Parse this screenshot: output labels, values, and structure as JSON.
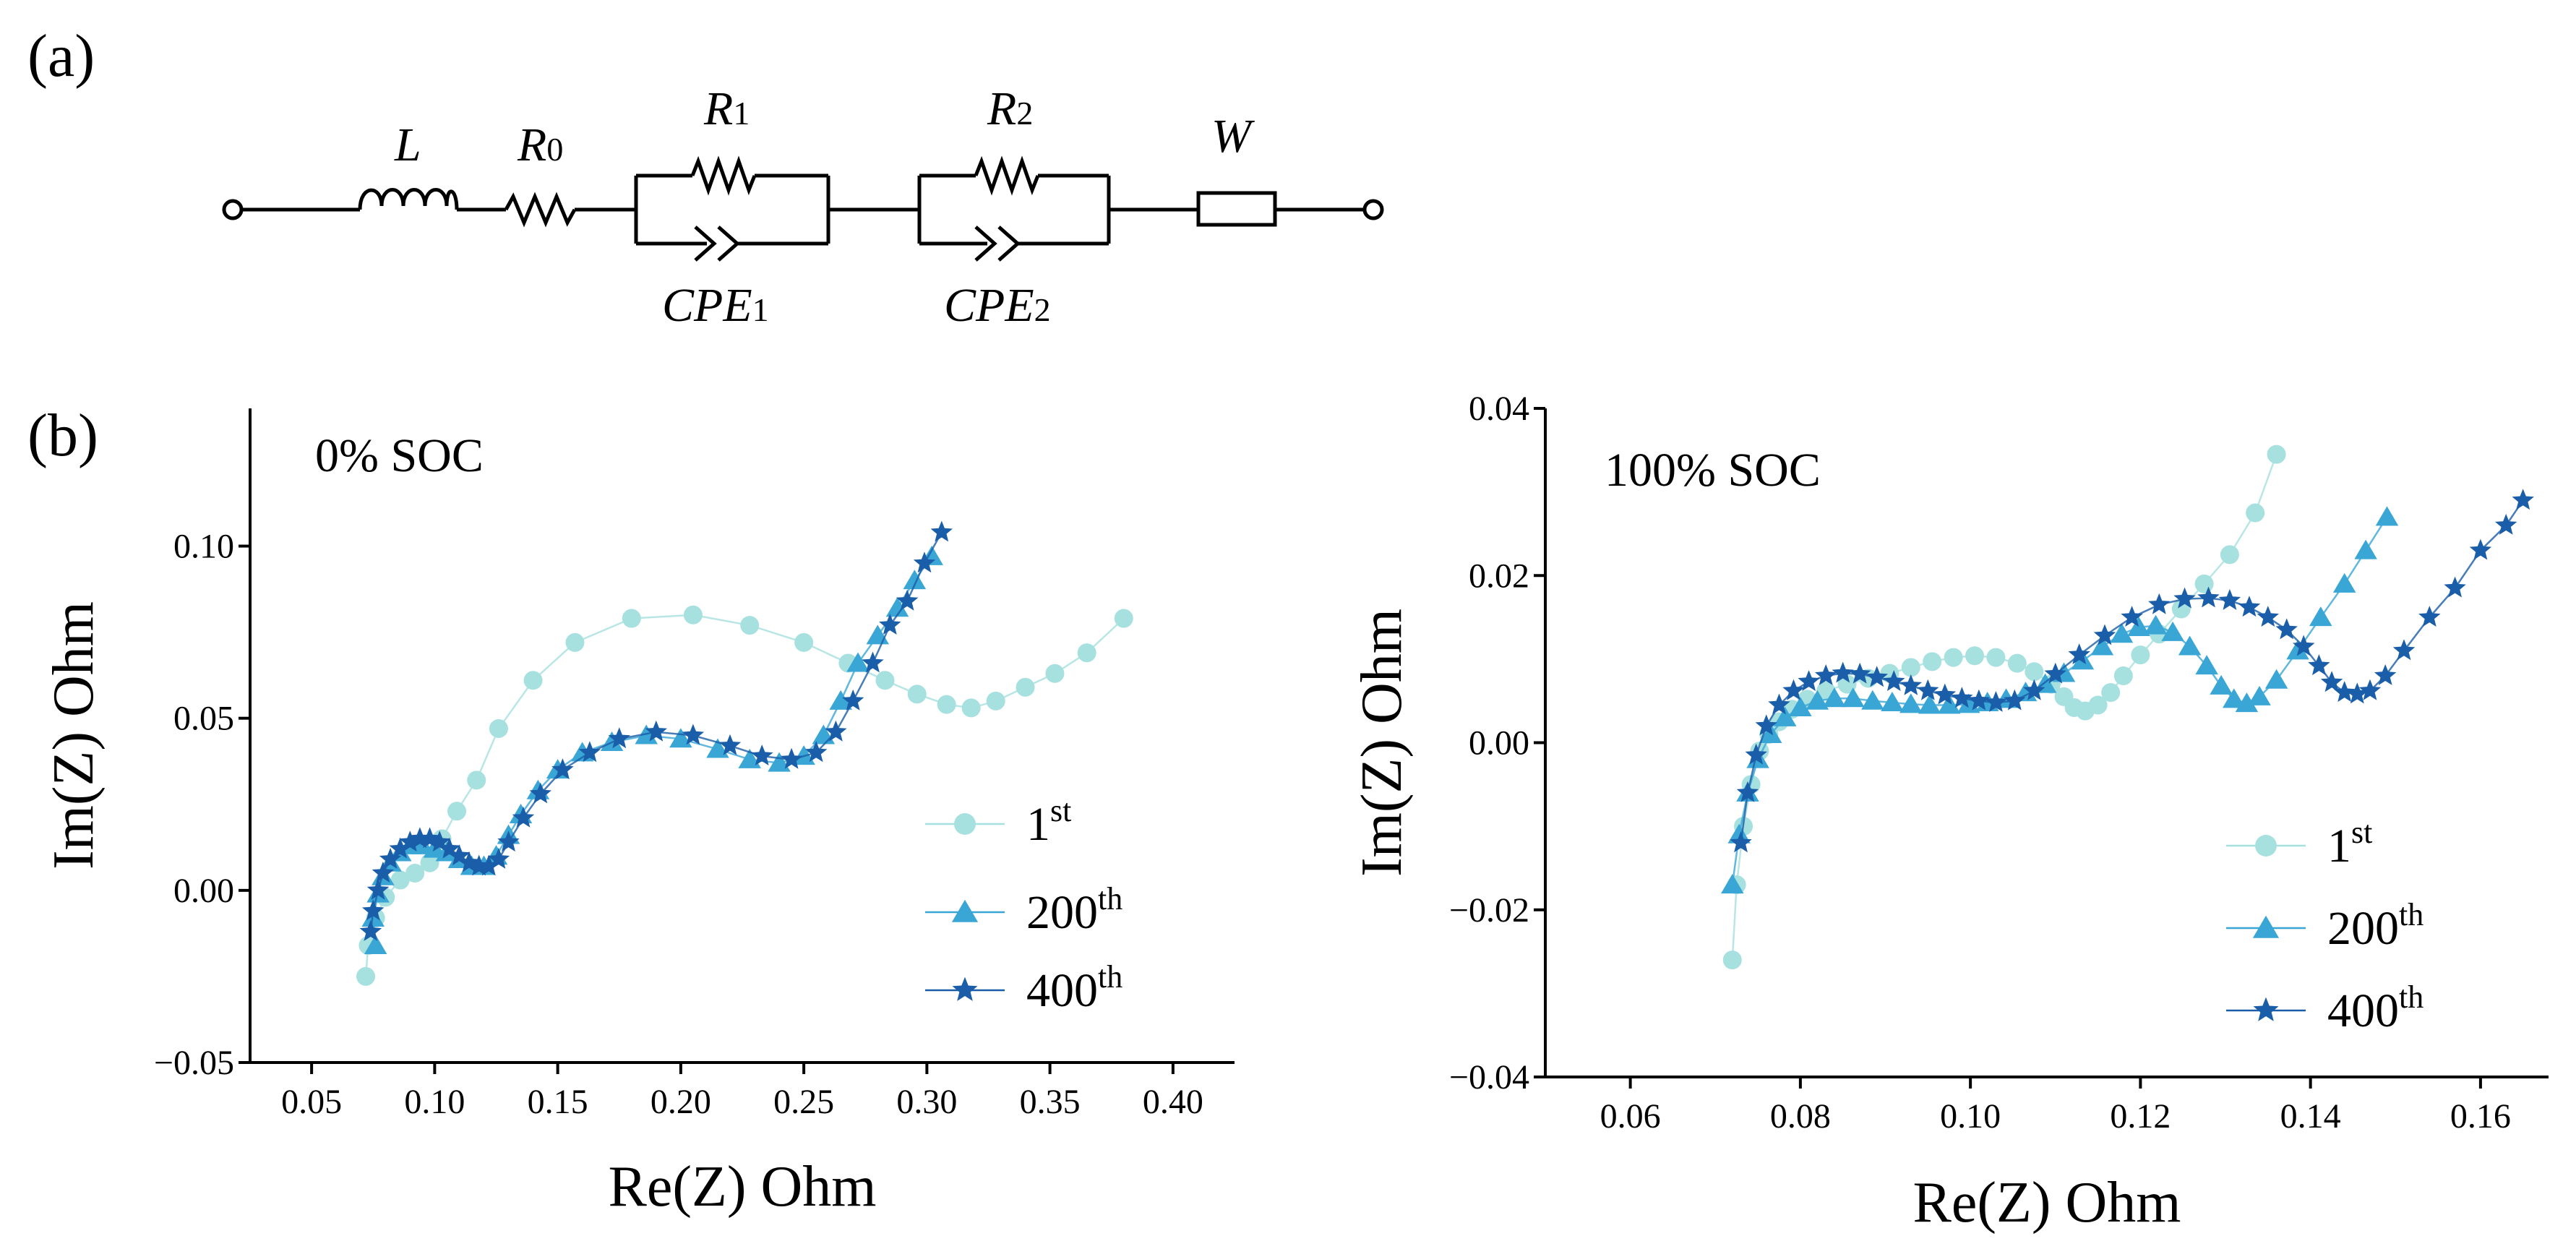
{
  "panel_labels": {
    "a": "(a)",
    "b": "(b)"
  },
  "circuit": {
    "labels": {
      "L": "L",
      "R0_main": "R",
      "R0_sub": "0",
      "R1_main": "R",
      "R1_sub": "1",
      "R2_main": "R",
      "R2_sub": "2",
      "W": "W",
      "CPE1_main": "CPE",
      "CPE1_sub": "1",
      "CPE2_main": "CPE",
      "CPE2_sub": "2"
    }
  },
  "colors": {
    "s1": "#a6e0df",
    "s200": "#3aa6d6",
    "s400": "#1a5da8"
  },
  "chart_data": [
    {
      "type": "scatter",
      "annotation": "0% SOC",
      "xlabel": "Re(Z) Ohm",
      "ylabel": "Im(Z) Ohm",
      "xlim": [
        0.025,
        0.425
      ],
      "ylim": [
        -0.05,
        0.14
      ],
      "xticks": [
        0.05,
        0.1,
        0.15,
        0.2,
        0.25,
        0.3,
        0.35,
        0.4
      ],
      "xtick_labels": [
        "0.05",
        "0.10",
        "0.15",
        "0.20",
        "0.25",
        "0.30",
        "0.35",
        "0.40"
      ],
      "yticks": [
        -0.05,
        0.0,
        0.05,
        0.1
      ],
      "ytick_labels": [
        "−0.05",
        "0.00",
        "0.05",
        "0.10"
      ],
      "legend_position": "right",
      "series": [
        {
          "name": "1",
          "sup": "st",
          "marker": "circle",
          "color_key": "s1",
          "x": [
            0.072,
            0.073,
            0.076,
            0.08,
            0.086,
            0.092,
            0.098,
            0.103,
            0.109,
            0.117,
            0.126,
            0.14,
            0.157,
            0.18,
            0.205,
            0.228,
            0.25,
            0.268,
            0.283,
            0.296,
            0.308,
            0.318,
            0.328,
            0.34,
            0.352,
            0.365,
            0.38
          ],
          "y": [
            -0.025,
            -0.016,
            -0.008,
            -0.002,
            0.003,
            0.005,
            0.008,
            0.015,
            0.023,
            0.032,
            0.047,
            0.061,
            0.072,
            0.079,
            0.08,
            0.077,
            0.072,
            0.066,
            0.061,
            0.057,
            0.054,
            0.053,
            0.055,
            0.059,
            0.063,
            0.069,
            0.079
          ]
        },
        {
          "name": "200",
          "sup": "th",
          "marker": "triangle",
          "color_key": "s200",
          "x": [
            0.076,
            0.075,
            0.077,
            0.079,
            0.082,
            0.086,
            0.09,
            0.095,
            0.1,
            0.105,
            0.11,
            0.115,
            0.12,
            0.125,
            0.13,
            0.135,
            0.142,
            0.15,
            0.16,
            0.172,
            0.186,
            0.2,
            0.215,
            0.228,
            0.24,
            0.25,
            0.258,
            0.265,
            0.272,
            0.28,
            0.288,
            0.295,
            0.302
          ],
          "y": [
            -0.016,
            -0.008,
            -0.001,
            0.004,
            0.008,
            0.011,
            0.013,
            0.013,
            0.012,
            0.011,
            0.009,
            0.007,
            0.007,
            0.01,
            0.016,
            0.022,
            0.029,
            0.035,
            0.04,
            0.043,
            0.045,
            0.044,
            0.041,
            0.038,
            0.037,
            0.039,
            0.045,
            0.055,
            0.066,
            0.074,
            0.082,
            0.09,
            0.097
          ]
        },
        {
          "name": "400",
          "sup": "th",
          "marker": "star",
          "color_key": "s400",
          "x": [
            0.074,
            0.075,
            0.077,
            0.079,
            0.082,
            0.086,
            0.09,
            0.094,
            0.098,
            0.102,
            0.106,
            0.11,
            0.114,
            0.118,
            0.122,
            0.126,
            0.13,
            0.136,
            0.143,
            0.152,
            0.163,
            0.175,
            0.19,
            0.205,
            0.22,
            0.233,
            0.245,
            0.255,
            0.263,
            0.27,
            0.278,
            0.285,
            0.292,
            0.299,
            0.306
          ],
          "y": [
            -0.012,
            -0.006,
            0.0,
            0.005,
            0.009,
            0.012,
            0.014,
            0.015,
            0.015,
            0.014,
            0.012,
            0.01,
            0.008,
            0.007,
            0.007,
            0.009,
            0.014,
            0.021,
            0.028,
            0.035,
            0.04,
            0.044,
            0.046,
            0.045,
            0.042,
            0.039,
            0.038,
            0.04,
            0.046,
            0.055,
            0.066,
            0.077,
            0.084,
            0.095,
            0.104
          ]
        }
      ]
    },
    {
      "type": "scatter",
      "annotation": "100% SOC",
      "xlabel": "Re(Z) Ohm",
      "ylabel": "Im(Z) Ohm",
      "xlim": [
        0.05,
        0.168
      ],
      "ylim": [
        -0.04,
        0.04
      ],
      "xticks": [
        0.06,
        0.08,
        0.1,
        0.12,
        0.14,
        0.16
      ],
      "xtick_labels": [
        "0.06",
        "0.08",
        "0.10",
        "0.12",
        "0.14",
        "0.16"
      ],
      "yticks": [
        -0.04,
        -0.02,
        0.0,
        0.02,
        0.04
      ],
      "ytick_labels": [
        "−0.04",
        "−0.02",
        "0.00",
        "0.02",
        "0.04"
      ],
      "legend_position": "bottom-right",
      "series": [
        {
          "name": "1",
          "sup": "st",
          "marker": "circle",
          "color_key": "s1",
          "x": [
            0.072,
            0.0725,
            0.0733,
            0.0742,
            0.0752,
            0.0763,
            0.0775,
            0.079,
            0.0808,
            0.083,
            0.0855,
            0.088,
            0.0905,
            0.093,
            0.0955,
            0.098,
            0.1005,
            0.103,
            0.1055,
            0.1075,
            0.1095,
            0.111,
            0.1122,
            0.1135,
            0.115,
            0.1165,
            0.118,
            0.12,
            0.1222,
            0.1248,
            0.1275,
            0.1305,
            0.1335,
            0.136
          ],
          "y": [
            -0.026,
            -0.017,
            -0.01,
            -0.005,
            -0.001,
            0.001,
            0.0025,
            0.004,
            0.0052,
            0.0062,
            0.007,
            0.0077,
            0.0083,
            0.009,
            0.0097,
            0.0102,
            0.0104,
            0.0102,
            0.0095,
            0.0085,
            0.007,
            0.0055,
            0.0042,
            0.0038,
            0.0045,
            0.006,
            0.008,
            0.0105,
            0.013,
            0.016,
            0.019,
            0.0225,
            0.0275,
            0.0345
          ]
        },
        {
          "name": "200",
          "sup": "th",
          "marker": "triangle",
          "color_key": "s200",
          "x": [
            0.072,
            0.0728,
            0.0738,
            0.075,
            0.0765,
            0.0782,
            0.08,
            0.082,
            0.084,
            0.0862,
            0.0885,
            0.0908,
            0.093,
            0.0952,
            0.0975,
            0.0998,
            0.102,
            0.1042,
            0.1065,
            0.1088,
            0.111,
            0.1132,
            0.1155,
            0.1178,
            0.1198,
            0.1218,
            0.1238,
            0.1258,
            0.1278,
            0.1295,
            0.131,
            0.1325,
            0.134,
            0.136,
            0.1385,
            0.1412,
            0.144,
            0.1465,
            0.149
          ],
          "y": [
            -0.017,
            -0.011,
            -0.006,
            -0.002,
            0.001,
            0.003,
            0.0042,
            0.005,
            0.0053,
            0.0053,
            0.005,
            0.0048,
            0.0046,
            0.0045,
            0.0045,
            0.0046,
            0.0048,
            0.0052,
            0.006,
            0.007,
            0.0083,
            0.0098,
            0.0115,
            0.013,
            0.0138,
            0.014,
            0.0132,
            0.0115,
            0.0092,
            0.0068,
            0.0052,
            0.0047,
            0.0055,
            0.0075,
            0.011,
            0.015,
            0.019,
            0.023,
            0.027
          ]
        },
        {
          "name": "400",
          "sup": "th",
          "marker": "star",
          "color_key": "s400",
          "x": [
            0.073,
            0.0738,
            0.0748,
            0.076,
            0.0775,
            0.0792,
            0.081,
            0.083,
            0.085,
            0.087,
            0.089,
            0.091,
            0.093,
            0.095,
            0.097,
            0.099,
            0.101,
            0.103,
            0.1052,
            0.1075,
            0.11,
            0.1128,
            0.1158,
            0.119,
            0.1222,
            0.1252,
            0.128,
            0.1305,
            0.1328,
            0.135,
            0.1372,
            0.1392,
            0.141,
            0.1425,
            0.144,
            0.1455,
            0.147,
            0.1488,
            0.151,
            0.154,
            0.157,
            0.16,
            0.163,
            0.165
          ],
          "y": [
            -0.012,
            -0.006,
            -0.0015,
            0.002,
            0.0045,
            0.0062,
            0.0073,
            0.008,
            0.0083,
            0.0082,
            0.0078,
            0.0073,
            0.0068,
            0.0062,
            0.0057,
            0.0053,
            0.005,
            0.0048,
            0.005,
            0.0062,
            0.0082,
            0.0105,
            0.0128,
            0.015,
            0.0165,
            0.0172,
            0.0173,
            0.017,
            0.0162,
            0.015,
            0.0135,
            0.0115,
            0.0092,
            0.0072,
            0.006,
            0.0058,
            0.0062,
            0.008,
            0.011,
            0.015,
            0.0185,
            0.023,
            0.026,
            0.029
          ]
        }
      ]
    }
  ]
}
